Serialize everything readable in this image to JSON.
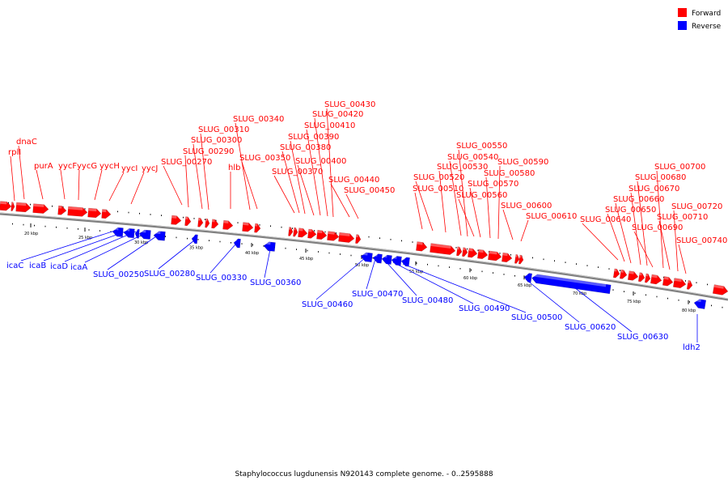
{
  "legend": [
    {
      "label": "Forward",
      "color": "#ff0000"
    },
    {
      "label": "Reverse",
      "color": "#0000ff"
    }
  ],
  "caption": "Staphylococcus lugdunensis N920143 complete genome. - 0..2595888",
  "colors": {
    "forward": "#ff0000",
    "reverse": "#0000ff",
    "backbone": "#808080"
  },
  "ticks": [
    {
      "kbp": 20,
      "label": "20 kbp"
    },
    {
      "kbp": 25,
      "label": "25 kbp"
    },
    {
      "kbp": 30,
      "label": "30 kbp"
    },
    {
      "kbp": 35,
      "label": "35 kbp"
    },
    {
      "kbp": 40,
      "label": "40 kbp"
    },
    {
      "kbp": 45,
      "label": "45 kbp"
    },
    {
      "kbp": 50,
      "label": "50 kbp"
    },
    {
      "kbp": 55,
      "label": "55 kbp"
    },
    {
      "kbp": 60,
      "label": "60 kbp"
    },
    {
      "kbp": 65,
      "label": "65 kbp"
    },
    {
      "kbp": 70,
      "label": "70 kbp"
    },
    {
      "kbp": 75,
      "label": "75 kbp"
    },
    {
      "kbp": 80,
      "label": "80 kbp"
    }
  ],
  "forward_genes": [
    "rplI",
    "dnaC",
    "purA",
    "yycF",
    "yycG",
    "yycH",
    "yycI",
    "yycJ",
    "SLUG_00270",
    "SLUG_00290",
    "SLUG_00300",
    "SLUG_00310",
    "hlb",
    "SLUG_00340",
    "SLUG_00350",
    "SLUG_00370",
    "SLUG_00380",
    "SLUG_00390",
    "SLUG_00400",
    "SLUG_00410",
    "SLUG_00420",
    "SLUG_00430",
    "SLUG_00440",
    "SLUG_00450",
    "SLUG_00510",
    "SLUG_00520",
    "SLUG_00530",
    "SLUG_00540",
    "SLUG_00550",
    "SLUG_00560",
    "SLUG_00570",
    "SLUG_00580",
    "SLUG_00590",
    "SLUG_00600",
    "SLUG_00610",
    "SLUG_00640",
    "SLUG_00650",
    "SLUG_00660",
    "SLUG_00670",
    "SLUG_00680",
    "SLUG_00690",
    "SLUG_00700",
    "SLUG_00710",
    "SLUG_00720",
    "SLUG_00740"
  ],
  "reverse_genes": [
    "icaC",
    "icaB",
    "icaD",
    "icaA",
    "SLUG_00250",
    "SLUG_00280",
    "SLUG_00330",
    "SLUG_00360",
    "SLUG_00460",
    "SLUG_00470",
    "SLUG_00480",
    "SLUG_00490",
    "SLUG_00500",
    "SLUG_00620",
    "SLUG_00630",
    "ldh2"
  ]
}
